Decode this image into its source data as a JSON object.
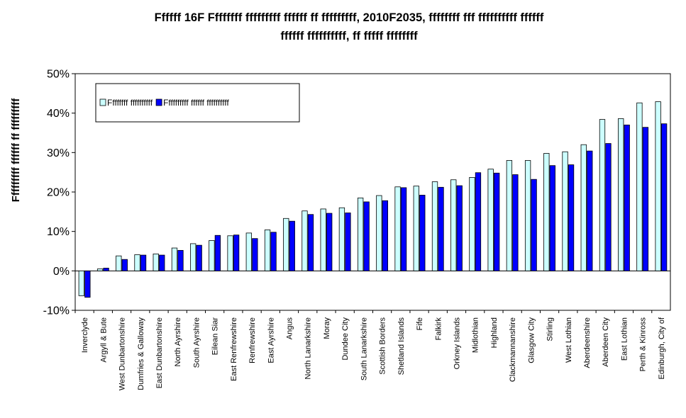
{
  "chart_data": {
    "type": "bar",
    "title_line1": "Ffffff 16F Ffffffff fffffffff ffffff ff fffffffff, 2010F2035, ffffffff fff ffffffffff ffffff",
    "title_line2": "ffffff ffffffffff, ff fffff ffffffff",
    "ylabel": "Fffffffff ffffff ff fffffffff",
    "xlabel": "",
    "ylim": [
      -10,
      50
    ],
    "yticks": [
      -10,
      0,
      10,
      20,
      30,
      40,
      50
    ],
    "ytick_labels": [
      "-10%",
      "0%",
      "10%",
      "20%",
      "30%",
      "40%",
      "50%"
    ],
    "grid": false,
    "legend_position": "top-left",
    "categories": [
      "Inverclyde",
      "Argyll & Bute",
      "West Dunbartonshire",
      "Dumfries & Galloway",
      "East Dunbartonshire",
      "North Ayrshire",
      "South Ayrshire",
      "Eilean Siar",
      "East Renfrewshire",
      "Renfrewshire",
      "East Ayrshire",
      "Angus",
      "North Lanarkshire",
      "Moray",
      "Dundee City",
      "South Lanarkshire",
      "Scottish Borders",
      "Shetland Islands",
      "Fife",
      "Falkirk",
      "Orkney Islands",
      "Midlothian",
      "Highland",
      "Clackmannanshire",
      "Glasgow City",
      "Stirling",
      "West Lothian",
      "Aberdeenshire",
      "Aberdeen City",
      "East Lothian",
      "Perth & Kinross",
      "Edinburgh, City of"
    ],
    "series": [
      {
        "name": "Ffffffff ffffffffff",
        "color": "#ccffff",
        "values": [
          -6.3,
          0.5,
          3.8,
          4.1,
          4.3,
          5.8,
          6.9,
          7.7,
          8.9,
          9.6,
          10.4,
          13.3,
          15.2,
          15.7,
          16.0,
          18.5,
          19.1,
          21.3,
          21.5,
          22.6,
          23.1,
          23.7,
          25.8,
          28.0,
          28.0,
          29.8,
          30.2,
          32.0,
          38.4,
          38.6,
          42.6,
          42.9
        ]
      },
      {
        "name": "Ffffffffff ffffff ffffffffff",
        "color": "#0000ff",
        "values": [
          -6.7,
          0.7,
          2.9,
          4.0,
          4.0,
          5.2,
          6.5,
          9.0,
          9.1,
          8.2,
          9.8,
          12.6,
          14.3,
          14.6,
          14.7,
          17.5,
          17.8,
          21.1,
          19.2,
          21.2,
          21.6,
          24.9,
          24.8,
          24.4,
          23.2,
          26.7,
          26.9,
          30.4,
          32.3,
          37.0,
          36.4,
          37.3
        ]
      }
    ]
  }
}
